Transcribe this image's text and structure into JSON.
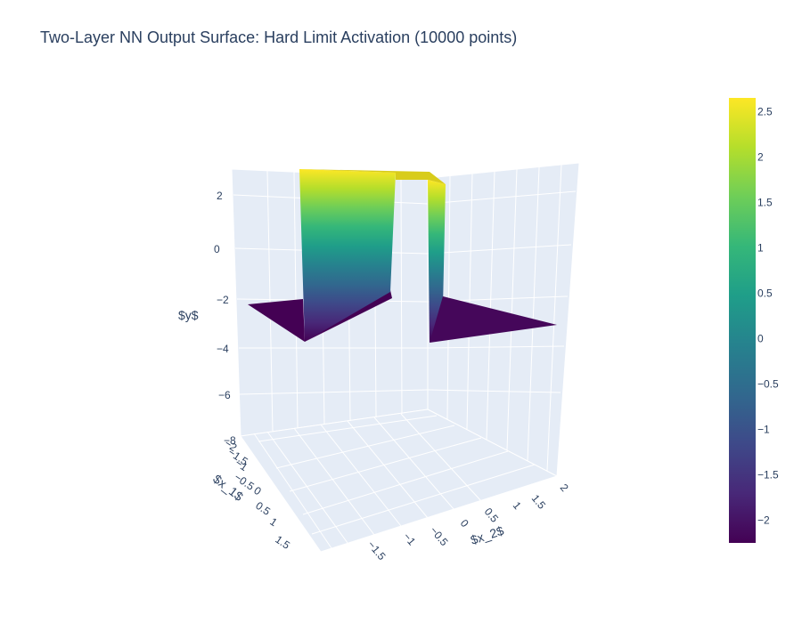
{
  "page": {
    "title": "Two-Layer NN Output Surface: Hard Limit Activation (10000 points)"
  },
  "chart_data": {
    "type": "surface",
    "title": "Two-Layer NN Output Surface: Hard Limit Activation (10000 points)",
    "xlabel": "$x_2$",
    "ylabel": "$x_1$",
    "zlabel": "$y$",
    "x_ticks": [
      "−1.5",
      "−1",
      "−0.5",
      "0",
      "0.5",
      "1",
      "1.5",
      "2"
    ],
    "y_ticks": [
      "−2",
      "−1.5",
      "−1",
      "−0.5",
      "0",
      "0.5",
      "1",
      "1.5"
    ],
    "z_ticks": [
      "2",
      "0",
      "−2",
      "−4",
      "−6",
      "−8"
    ],
    "z_range": [
      -8,
      3
    ],
    "levels": {
      "low": -2.2,
      "high": 2.6
    },
    "colorscale": {
      "name": "Viridis",
      "min": -2.25,
      "max": 2.65,
      "ticks": [
        "2.5",
        "2",
        "1.5",
        "1",
        "0.5",
        "0",
        "−0.5",
        "−1",
        "−1.5",
        "−2"
      ],
      "stops": [
        "#440154",
        "#482878",
        "#3e4989",
        "#31688e",
        "#26828e",
        "#1f9e89",
        "#35b779",
        "#6ece58",
        "#b5de2b",
        "#fde725"
      ]
    }
  }
}
